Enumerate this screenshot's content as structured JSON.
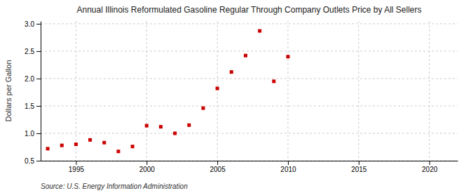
{
  "chart_data": {
    "type": "scatter",
    "title": "Annual Illinois Reformulated Gasoline Regular Through Company Outlets Price by All Sellers",
    "ylabel": "Dollars per Gallon",
    "source": "Source: U.S. Energy Information Administration",
    "color": "#cc0000",
    "marker": "square",
    "grid": true,
    "x": [
      1993,
      1994,
      1995,
      1996,
      1997,
      1998,
      1999,
      2000,
      2001,
      2002,
      2003,
      2004,
      2005,
      2006,
      2007,
      2008,
      2009,
      2010
    ],
    "values": [
      0.72,
      0.78,
      0.8,
      0.88,
      0.83,
      0.67,
      0.76,
      1.14,
      1.12,
      1.0,
      1.15,
      1.46,
      1.82,
      2.12,
      2.42,
      2.87,
      1.95,
      2.4
    ],
    "xlim": [
      1992.5,
      2022
    ],
    "ylim": [
      0.5,
      3.05
    ],
    "xticks": [
      1995,
      2000,
      2005,
      2010,
      2015,
      2020
    ],
    "yticks": [
      0.5,
      {
        "value": 1.0,
        "label": "1.0"
      },
      1.5,
      {
        "value": 2.0,
        "label": "2.0"
      },
      2.5,
      {
        "value": 3.0,
        "label": "3.0"
      }
    ]
  }
}
